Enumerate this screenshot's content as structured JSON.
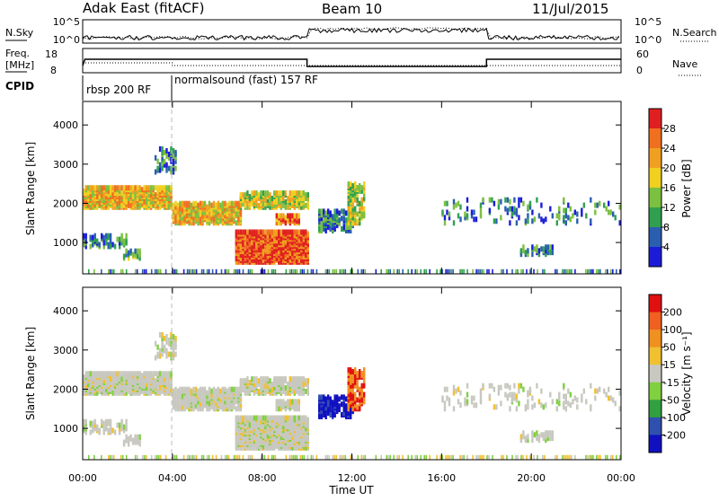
{
  "header": {
    "station": "Adak East (fitACF)",
    "beam": "Beam 10",
    "date": "11/Jul/2015"
  },
  "noise_panel": {
    "left_label": "N.Sky",
    "right_label": "N.Search",
    "left_ticks": [
      "10^5",
      "10^0"
    ],
    "right_ticks": [
      "10^5",
      "10^0"
    ]
  },
  "freq_panel": {
    "left_label_line1": "Freq.",
    "left_label_line2": "[MHz]",
    "right_label": "Nave",
    "left_ticks": [
      "18",
      "8"
    ],
    "right_ticks": [
      "60",
      "0"
    ]
  },
  "cpid": {
    "label": "CPID",
    "segments": [
      {
        "start_hour": 0,
        "name": "rbsp 200 RF"
      },
      {
        "start_hour": 4,
        "name": "normalsound (fast) 157 RF"
      }
    ]
  },
  "chart_data": [
    {
      "type": "heatmap",
      "quantity": "power",
      "ylabel": "Slant Range [km]",
      "y_ticks": [
        "4000",
        "3000",
        "2000",
        "1000"
      ],
      "ylim": [
        200,
        4600
      ],
      "colorbar_label": "Power [dB]",
      "colorbar_ticks": [
        "28",
        "24",
        "20",
        "16",
        "12",
        "8",
        "4"
      ],
      "colorbar_range": [
        0,
        32
      ],
      "colors": [
        "#1c1cd8",
        "#2a5fb0",
        "#30a050",
        "#7cc040",
        "#f0d020",
        "#f0a020",
        "#f07020",
        "#e02020"
      ]
    },
    {
      "type": "heatmap",
      "quantity": "velocity",
      "ylabel": "Slant Range [km]",
      "y_ticks": [
        "4000",
        "3000",
        "2000",
        "1000"
      ],
      "ylim": [
        200,
        4600
      ],
      "colorbar_label": "Velocity [m s⁻¹]",
      "colorbar_ticks": [
        "200",
        "100",
        "50",
        "15",
        "-15",
        "-50",
        "-100",
        "-200"
      ],
      "colors": [
        "#1010c0",
        "#3050b0",
        "#30a040",
        "#80d040",
        "#c8c8c0",
        "#f0c030",
        "#f09020",
        "#f06020",
        "#e01010"
      ]
    }
  ],
  "time_axis": {
    "ticks": [
      "00:00",
      "04:00",
      "08:00",
      "12:00",
      "16:00",
      "20:00",
      "00:00"
    ],
    "xlabel": "Time UT",
    "xlim_hours": [
      0,
      24
    ]
  }
}
